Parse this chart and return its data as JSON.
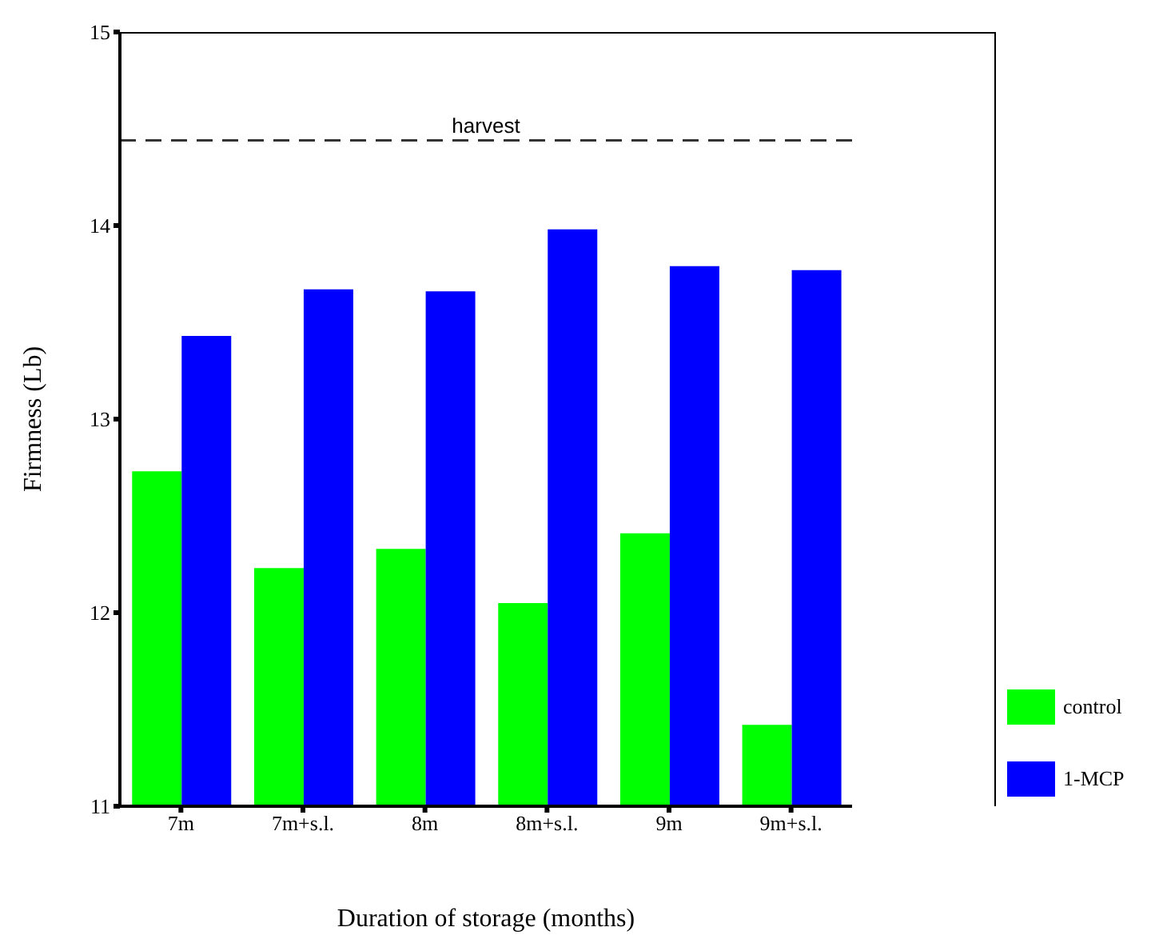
{
  "chart_data": {
    "type": "bar",
    "xlabel": "Duration of storage (months)",
    "ylabel": "Firmness (Lb)",
    "categories": [
      "7m",
      "7m+s.l.",
      "8m",
      "8m+s.l.",
      "9m",
      "9m+s.l."
    ],
    "series": [
      {
        "name": "control",
        "color": "#00ff00",
        "values": [
          12.73,
          12.23,
          12.33,
          12.05,
          12.41,
          11.42
        ]
      },
      {
        "name": "1-MCP",
        "color": "#0000ff",
        "values": [
          13.43,
          13.67,
          13.66,
          13.98,
          13.79,
          13.77
        ]
      }
    ],
    "ylim": [
      11,
      15
    ],
    "yticks": [
      11,
      12,
      13,
      14,
      15
    ],
    "ref_lines": [
      {
        "axis": "y",
        "value": 14.44,
        "label": "harvest",
        "color": "#333333",
        "line_style": "dashed"
      }
    ],
    "grid": false,
    "legend": "bottom right"
  }
}
